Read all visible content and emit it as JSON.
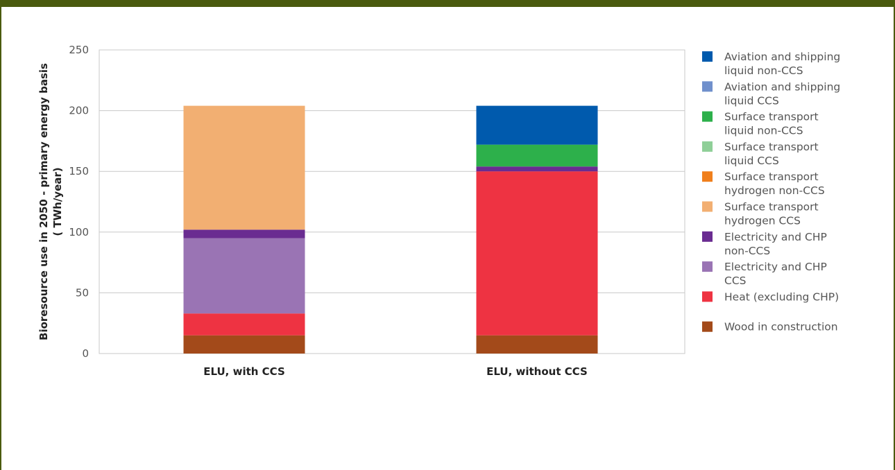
{
  "chart_data": {
    "type": "bar",
    "stacked": true,
    "categories": [
      "ELU, with CCS",
      "ELU, without CCS"
    ],
    "ylabel_line1": "Bioresource use in 2050 - primary energy basis",
    "ylabel_line2": "( TWh/year)",
    "ylim": [
      0,
      250
    ],
    "yticks": [
      0,
      50,
      100,
      150,
      200,
      250
    ],
    "grid": true,
    "legend_position": "right",
    "series": [
      {
        "name": "Wood in construction",
        "color": "#a34a1a",
        "values": [
          15,
          15
        ]
      },
      {
        "name": "Heat (excluding CHP)",
        "color": "#ee3342",
        "values": [
          18,
          135
        ]
      },
      {
        "name": "Electricity and CHP CCS",
        "color": "#9a74b4",
        "values": [
          62,
          0
        ]
      },
      {
        "name": "Electricity and CHP non-CCS",
        "color": "#6a2c91",
        "values": [
          7,
          4
        ]
      },
      {
        "name": "Surface transport hydrogen CCS",
        "color": "#f2af72",
        "values": [
          102,
          0
        ]
      },
      {
        "name": "Surface transport hydrogen non-CCS",
        "color": "#f07f1c",
        "values": [
          0,
          0
        ]
      },
      {
        "name": "Surface transport liquid CCS",
        "color": "#8fcf98",
        "values": [
          0,
          0
        ]
      },
      {
        "name": "Surface transport liquid non-CCS",
        "color": "#2db04b",
        "values": [
          0,
          18
        ]
      },
      {
        "name": "Aviation and shipping liquid CCS",
        "color": "#7090cc",
        "values": [
          0,
          0
        ]
      },
      {
        "name": "Aviation and shipping liquid non-CCS",
        "color": "#005aad",
        "values": [
          0,
          32
        ]
      }
    ],
    "legend": [
      {
        "line1": "Aviation and shipping",
        "line2": "liquid non-CCS",
        "color": "#005aad"
      },
      {
        "line1": "Aviation and shipping",
        "line2": "liquid CCS",
        "color": "#7090cc"
      },
      {
        "line1": "Surface transport",
        "line2": "liquid non-CCS",
        "color": "#2db04b"
      },
      {
        "line1": "Surface transport",
        "line2": "liquid CCS",
        "color": "#8fcf98"
      },
      {
        "line1": "Surface transport",
        "line2": "hydrogen non-CCS",
        "color": "#f07f1c"
      },
      {
        "line1": "Surface transport",
        "line2": "hydrogen CCS",
        "color": "#f2af72"
      },
      {
        "line1": "Electricity and CHP",
        "line2": "non-CCS",
        "color": "#6a2c91"
      },
      {
        "line1": "Electricity and CHP",
        "line2": "CCS",
        "color": "#9a74b4"
      },
      {
        "line1": "Heat (excluding CHP)",
        "line2": "",
        "color": "#ee3342"
      },
      {
        "line1": "Wood in construction",
        "line2": "",
        "color": "#a34a1a"
      }
    ]
  }
}
